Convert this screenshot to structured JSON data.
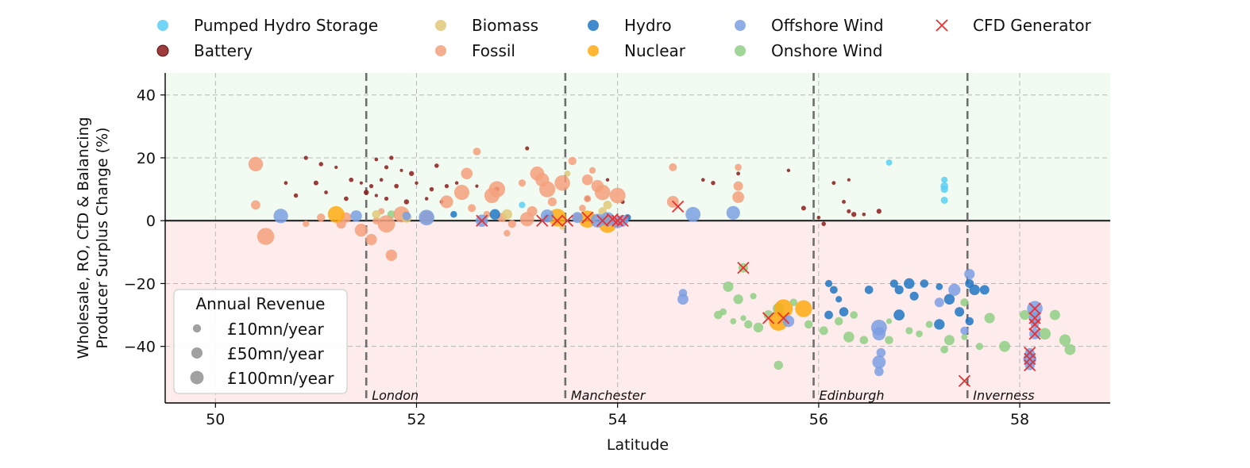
{
  "chart_data": {
    "type": "scatter",
    "xlabel": "Latitude",
    "ylabel": [
      "Wholesale, RO, CfD & Balancing",
      "Producer Surplus Change (%)"
    ],
    "xlim": [
      49.5,
      58.9
    ],
    "ylim": [
      -58,
      47
    ],
    "xticks": [
      50,
      52,
      54,
      56,
      58
    ],
    "yticks": [
      40,
      20,
      0,
      -20,
      -40
    ],
    "grid": true,
    "background_bands": [
      {
        "from": 0,
        "to": 47,
        "color": "#f1fbf1"
      },
      {
        "from": -58,
        "to": 0,
        "color": "#fdeceb"
      }
    ],
    "cities": [
      {
        "name": "London",
        "lat": 51.5
      },
      {
        "name": "Manchester",
        "lat": 53.48
      },
      {
        "name": "Edinburgh",
        "lat": 55.95
      },
      {
        "name": "Inverness",
        "lat": 57.48
      }
    ],
    "legend": {
      "placement": "top",
      "entries": [
        {
          "name": "Pumped Hydro Storage",
          "color": "#5bcef5",
          "marker": "circle"
        },
        {
          "name": "Battery",
          "color": "#8b1a1a",
          "marker": "circle"
        },
        {
          "name": "Biomass",
          "color": "#e0c878",
          "marker": "circle"
        },
        {
          "name": "Fossil",
          "color": "#f5a07c",
          "marker": "circle"
        },
        {
          "name": "Hydro",
          "color": "#1f77c4",
          "marker": "circle"
        },
        {
          "name": "Nuclear",
          "color": "#ffaa10",
          "marker": "circle"
        },
        {
          "name": "Offshore Wind",
          "color": "#7b9fe3",
          "marker": "circle"
        },
        {
          "name": "Onshore Wind",
          "color": "#8fcf85",
          "marker": "circle"
        },
        {
          "name": "CFD Generator",
          "color": "#e83030",
          "marker": "x"
        }
      ]
    },
    "size_legend": {
      "title": "Annual Revenue",
      "placement": "lower-left",
      "entries": [
        {
          "label": "£10mn/year",
          "revenue": 10
        },
        {
          "label": "£50mn/year",
          "revenue": 50
        },
        {
          "label": "£100mn/year",
          "revenue": 100
        }
      ]
    },
    "series": [
      {
        "name": "Battery",
        "points": [
          [
            50.9,
            20
          ],
          [
            51.05,
            18
          ],
          [
            51.2,
            17
          ],
          [
            51.6,
            19.5
          ],
          [
            51.7,
            17
          ],
          [
            51.75,
            20
          ],
          [
            51.85,
            16
          ],
          [
            51.95,
            15
          ],
          [
            52.2,
            17.5
          ],
          [
            53.1,
            23
          ],
          [
            50.7,
            12
          ],
          [
            51.0,
            12
          ],
          [
            51.35,
            13
          ],
          [
            51.45,
            12
          ],
          [
            51.55,
            11
          ],
          [
            51.65,
            13
          ],
          [
            51.8,
            11
          ],
          [
            52.0,
            12
          ],
          [
            52.15,
            10
          ],
          [
            52.3,
            11
          ],
          [
            52.4,
            12
          ],
          [
            52.6,
            11
          ],
          [
            52.8,
            10
          ],
          [
            51.5,
            9
          ],
          [
            51.6,
            8
          ],
          [
            51.7,
            7
          ],
          [
            51.9,
            6
          ],
          [
            52.1,
            7
          ],
          [
            52.25,
            6
          ],
          [
            50.8,
            8
          ],
          [
            51.3,
            7
          ],
          [
            51.1,
            9
          ],
          [
            53.9,
            13
          ],
          [
            53.7,
            7
          ],
          [
            54.05,
            6
          ],
          [
            54.85,
            13
          ],
          [
            54.95,
            12
          ],
          [
            55.2,
            15
          ],
          [
            55.7,
            16
          ],
          [
            55.85,
            4
          ],
          [
            56.15,
            12
          ],
          [
            56.25,
            6
          ],
          [
            56.3,
            13
          ],
          [
            56.35,
            2
          ],
          [
            56.45,
            2
          ],
          [
            56.6,
            3
          ],
          [
            56.3,
            3
          ],
          [
            56.0,
            1
          ],
          [
            56.05,
            -1
          ]
        ]
      },
      {
        "name": "Pumped Hydro Storage",
        "points": [
          [
            57.25,
            13
          ],
          [
            57.25,
            11
          ],
          [
            57.25,
            10
          ],
          [
            57.25,
            6.5
          ],
          [
            56.7,
            18.5
          ],
          [
            53.05,
            5
          ]
        ]
      },
      {
        "name": "Biomass",
        "points": [
          [
            53.5,
            15
          ],
          [
            53.9,
            5
          ],
          [
            53.85,
            3
          ],
          [
            53.45,
            -2
          ],
          [
            52.9,
            2
          ],
          [
            51.6,
            2
          ],
          [
            51.9,
            1
          ]
        ]
      },
      {
        "name": "Fossil",
        "points": [
          [
            50.4,
            18
          ],
          [
            50.4,
            5
          ],
          [
            50.5,
            -5
          ],
          [
            50.9,
            -1
          ],
          [
            51.3,
            1
          ],
          [
            51.45,
            -3
          ],
          [
            51.55,
            -6
          ],
          [
            51.6,
            0
          ],
          [
            51.7,
            -1
          ],
          [
            51.75,
            -11
          ],
          [
            51.85,
            2
          ],
          [
            52.3,
            6
          ],
          [
            52.5,
            15
          ],
          [
            52.6,
            22
          ],
          [
            52.75,
            8
          ],
          [
            52.8,
            10
          ],
          [
            52.85,
            1
          ],
          [
            52.9,
            -4
          ],
          [
            52.95,
            -1
          ],
          [
            53.1,
            0.5
          ],
          [
            53.2,
            15
          ],
          [
            53.25,
            13
          ],
          [
            53.3,
            10
          ],
          [
            53.35,
            6
          ],
          [
            53.45,
            12
          ],
          [
            53.55,
            19
          ],
          [
            53.65,
            4
          ],
          [
            53.7,
            7
          ],
          [
            53.75,
            16
          ],
          [
            53.8,
            11
          ],
          [
            53.85,
            9
          ],
          [
            54.0,
            8
          ],
          [
            54.55,
            17
          ],
          [
            54.55,
            6
          ],
          [
            55.2,
            17
          ],
          [
            55.2,
            11
          ],
          [
            55.2,
            7.5
          ],
          [
            52.7,
            2
          ],
          [
            53.15,
            3
          ],
          [
            53.6,
            1
          ],
          [
            51.25,
            -1
          ],
          [
            52.45,
            9
          ],
          [
            52.55,
            4
          ],
          [
            51.05,
            1
          ],
          [
            51.65,
            3
          ],
          [
            52.1,
            1
          ],
          [
            53.05,
            12
          ],
          [
            53.7,
            13
          ]
        ]
      },
      {
        "name": "Hydro",
        "points": [
          [
            52.37,
            2
          ],
          [
            52.78,
            2
          ],
          [
            53.3,
            1
          ],
          [
            54.1,
            1
          ],
          [
            56.1,
            -20
          ],
          [
            56.15,
            -22
          ],
          [
            56.2,
            -25
          ],
          [
            56.25,
            -29
          ],
          [
            56.5,
            -22
          ],
          [
            56.75,
            -20
          ],
          [
            56.8,
            -22
          ],
          [
            56.9,
            -20
          ],
          [
            56.95,
            -24
          ],
          [
            57.05,
            -20
          ],
          [
            57.2,
            -21
          ],
          [
            57.3,
            -25
          ],
          [
            57.4,
            -29
          ],
          [
            57.5,
            -20
          ],
          [
            57.55,
            -22
          ],
          [
            57.65,
            -22
          ],
          [
            56.1,
            -30
          ],
          [
            56.8,
            -30
          ],
          [
            57.2,
            -33
          ],
          [
            57.5,
            -32
          ]
        ]
      },
      {
        "name": "Nuclear",
        "points": [
          [
            51.2,
            2
          ],
          [
            53.4,
            1
          ],
          [
            53.9,
            -1
          ],
          [
            55.65,
            -28
          ],
          [
            55.85,
            -28
          ],
          [
            55.6,
            -32
          ],
          [
            53.7,
            0.5
          ]
        ]
      },
      {
        "name": "Offshore Wind",
        "points": [
          [
            50.65,
            1.5
          ],
          [
            51.4,
            1.5
          ],
          [
            51.9,
            1.5
          ],
          [
            52.1,
            1
          ],
          [
            52.65,
            0
          ],
          [
            53.3,
            1.5
          ],
          [
            53.6,
            1
          ],
          [
            53.8,
            0
          ],
          [
            53.9,
            0.5
          ],
          [
            54.0,
            -0.5
          ],
          [
            54.05,
            0
          ],
          [
            54.75,
            2
          ],
          [
            55.15,
            2.5
          ],
          [
            54.65,
            -23
          ],
          [
            54.65,
            -25
          ],
          [
            55.7,
            -32
          ],
          [
            56.6,
            -34
          ],
          [
            56.6,
            -36
          ],
          [
            56.62,
            -42
          ],
          [
            56.6,
            -45
          ],
          [
            56.6,
            -48
          ],
          [
            57.2,
            -26
          ],
          [
            57.35,
            -22
          ],
          [
            57.5,
            -17
          ],
          [
            57.45,
            -35
          ],
          [
            58.15,
            -28
          ],
          [
            58.15,
            -31
          ],
          [
            58.15,
            -33
          ],
          [
            58.15,
            -36
          ],
          [
            58.1,
            -42
          ],
          [
            58.1,
            -44
          ],
          [
            58.1,
            -46
          ]
        ]
      },
      {
        "name": "Onshore Wind",
        "points": [
          [
            51.75,
            2
          ],
          [
            55.1,
            -21
          ],
          [
            55.2,
            -25
          ],
          [
            55.35,
            -24
          ],
          [
            55.05,
            -29
          ],
          [
            55.0,
            -30
          ],
          [
            55.15,
            -32
          ],
          [
            55.25,
            -31
          ],
          [
            55.3,
            -33
          ],
          [
            55.4,
            -34
          ],
          [
            55.5,
            -30
          ],
          [
            55.6,
            -28
          ],
          [
            55.75,
            -26
          ],
          [
            55.9,
            -33
          ],
          [
            56.05,
            -35
          ],
          [
            56.2,
            -32
          ],
          [
            56.3,
            -37
          ],
          [
            56.45,
            -38
          ],
          [
            56.7,
            -38
          ],
          [
            56.9,
            -35
          ],
          [
            57.1,
            -33
          ],
          [
            57.3,
            -38
          ],
          [
            57.45,
            -37
          ],
          [
            57.6,
            -40
          ],
          [
            57.7,
            -31
          ],
          [
            57.85,
            -40
          ],
          [
            58.25,
            -36
          ],
          [
            58.45,
            -38
          ],
          [
            58.5,
            -41
          ],
          [
            58.35,
            -30
          ],
          [
            55.25,
            -15
          ],
          [
            55.6,
            -46
          ],
          [
            56.7,
            -32
          ],
          [
            56.35,
            -30
          ],
          [
            57.25,
            -41
          ],
          [
            57.0,
            -36
          ],
          [
            57.45,
            -26
          ],
          [
            58.05,
            -30
          ]
        ]
      },
      {
        "name": "CFD Generator",
        "points": [
          [
            52.65,
            0
          ],
          [
            53.25,
            0
          ],
          [
            53.4,
            0
          ],
          [
            53.5,
            0
          ],
          [
            53.7,
            1
          ],
          [
            53.85,
            0
          ],
          [
            53.95,
            0.5
          ],
          [
            54.0,
            0
          ],
          [
            54.05,
            0
          ],
          [
            54.6,
            4.5
          ],
          [
            55.25,
            -15
          ],
          [
            55.5,
            -31
          ],
          [
            55.65,
            -31
          ],
          [
            57.45,
            -51
          ],
          [
            58.15,
            -28
          ],
          [
            58.15,
            -31
          ],
          [
            58.15,
            -33
          ],
          [
            58.15,
            -36
          ],
          [
            58.1,
            -42
          ],
          [
            58.1,
            -44
          ],
          [
            58.1,
            -46
          ]
        ]
      }
    ]
  }
}
